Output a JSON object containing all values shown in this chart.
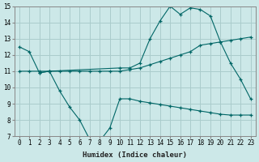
{
  "xlabel": "Humidex (Indice chaleur)",
  "background_color": "#cce8e8",
  "grid_color": "#aacccc",
  "line_color": "#006666",
  "xlim": [
    -0.5,
    23.5
  ],
  "ylim": [
    7,
    15
  ],
  "xticks": [
    0,
    1,
    2,
    3,
    4,
    5,
    6,
    7,
    8,
    9,
    10,
    11,
    12,
    13,
    14,
    15,
    16,
    17,
    18,
    19,
    20,
    21,
    22,
    23
  ],
  "yticks": [
    7,
    8,
    9,
    10,
    11,
    12,
    13,
    14,
    15
  ],
  "curve1_x": [
    0,
    1,
    2,
    3,
    10,
    11,
    12,
    13,
    14,
    15,
    16,
    17,
    18,
    19,
    20,
    21,
    22,
    23
  ],
  "curve1_y": [
    12.5,
    12.2,
    10.9,
    11.0,
    11.2,
    11.2,
    11.5,
    13.0,
    14.1,
    15.0,
    14.5,
    14.9,
    14.8,
    14.4,
    12.8,
    11.5,
    10.5,
    9.3
  ],
  "curve2_x": [
    0,
    1,
    2,
    3,
    4,
    5,
    6,
    7,
    8,
    9,
    10,
    11,
    12,
    13,
    14,
    15,
    16,
    17,
    18,
    19,
    20,
    21,
    22,
    23
  ],
  "curve2_y": [
    11.0,
    11.0,
    11.0,
    11.0,
    11.0,
    11.0,
    11.0,
    11.0,
    11.0,
    11.0,
    11.0,
    11.1,
    11.2,
    11.4,
    11.6,
    11.8,
    12.0,
    12.2,
    12.6,
    12.7,
    12.8,
    12.9,
    13.0,
    13.1
  ],
  "curve3_x": [
    2,
    3,
    4,
    5,
    6,
    7,
    8,
    9,
    10,
    11,
    12,
    13,
    14,
    15,
    16,
    17,
    18,
    19,
    20,
    21,
    22,
    23
  ],
  "curve3_y": [
    10.9,
    11.0,
    9.8,
    8.8,
    8.0,
    6.8,
    6.7,
    7.5,
    9.3,
    9.3,
    9.15,
    9.05,
    8.95,
    8.85,
    8.75,
    8.65,
    8.55,
    8.45,
    8.35,
    8.3,
    8.3,
    8.3
  ]
}
